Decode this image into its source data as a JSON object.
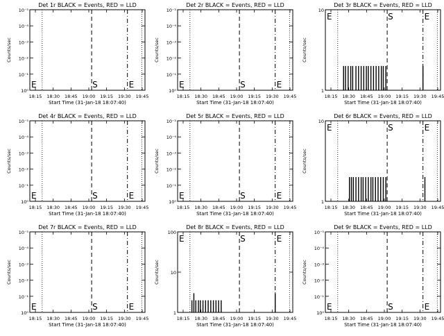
{
  "chart_data": [
    {
      "type": "line",
      "title": "Det 1r BLACK = Events, RED = LLD",
      "ylabel": "Counts/sec",
      "xlabel": "Start Time (31-Jan-18 18:07:40)",
      "yscale": "log",
      "ylim": [
        0.1,
        10000
      ],
      "yticks": [
        "10⁰",
        "10⁻¹",
        "10⁻²",
        "10⁻³",
        "10⁻⁴",
        "10⁻⁵"
      ],
      "xticks": [
        "18:15",
        "18:30",
        "18:45",
        "19:00",
        "19:15",
        "19:30",
        "19:45"
      ],
      "markers": [
        "E",
        "S",
        "E"
      ],
      "series": []
    },
    {
      "type": "line",
      "title": "Det 2r BLACK = Events, RED = LLD",
      "ylabel": "Counts/sec",
      "xlabel": "Start Time (31-Jan-18 18:07:40)",
      "yscale": "log",
      "ylim": [
        0.1,
        10000
      ],
      "yticks": [
        "10⁰",
        "10⁻¹",
        "10⁻²",
        "10⁻³",
        "10⁻⁴",
        "10⁻⁵"
      ],
      "xticks": [
        "18:15",
        "18:30",
        "18:45",
        "19:00",
        "19:15",
        "19:30",
        "19:45"
      ],
      "markers": [
        "E",
        "S",
        "E"
      ],
      "series": []
    },
    {
      "type": "line",
      "title": "Det 3r BLACK = Events, RED = LLD",
      "ylabel": "Counts/sec",
      "xlabel": "Start Time (31-Jan-18 18:07:40)",
      "yscale": "log",
      "ylim": [
        1,
        10
      ],
      "yticks": [
        "1",
        "10"
      ],
      "xticks": [
        "18:15",
        "18:30",
        "18:45",
        "19:00",
        "19:15",
        "19:30",
        "19:45"
      ],
      "markers": [
        "E",
        "S",
        "E"
      ],
      "series": [
        {
          "values": [
            [
              18.33,
              2
            ],
            [
              18.36,
              2
            ],
            [
              18.4,
              2
            ],
            [
              18.44,
              2
            ],
            [
              18.47,
              2
            ],
            [
              18.52,
              2
            ],
            [
              18.56,
              2
            ],
            [
              18.6,
              2
            ],
            [
              18.64,
              2
            ],
            [
              18.68,
              2
            ],
            [
              18.71,
              2
            ],
            [
              18.75,
              2
            ],
            [
              18.79,
              2
            ],
            [
              18.83,
              2
            ],
            [
              18.87,
              2
            ],
            [
              18.91,
              2
            ],
            [
              18.94,
              2
            ],
            [
              18.98,
              2
            ],
            [
              19.55,
              2
            ]
          ]
        }
      ]
    },
    {
      "type": "line",
      "title": "Det 4r BLACK = Events, RED = LLD",
      "ylabel": "Counts/sec",
      "xlabel": "Start Time (31-Jan-18 18:07:40)",
      "yscale": "log",
      "ylim": [
        0.1,
        10000
      ],
      "yticks": [
        "10⁰",
        "10⁻¹",
        "10⁻²",
        "10⁻³",
        "10⁻⁴",
        "10⁻⁵"
      ],
      "xticks": [
        "18:15",
        "18:30",
        "18:45",
        "19:00",
        "19:15",
        "19:30",
        "19:45"
      ],
      "markers": [
        "E",
        "S",
        "E"
      ],
      "series": []
    },
    {
      "type": "line",
      "title": "Det 5r BLACK = Events, RED = LLD",
      "ylabel": "Counts/sec",
      "xlabel": "Start Time (31-Jan-18 18:07:40)",
      "yscale": "log",
      "ylim": [
        0.1,
        10000
      ],
      "yticks": [
        "10⁰",
        "10⁻¹",
        "10⁻²",
        "10⁻³",
        "10⁻⁴",
        "10⁻⁵"
      ],
      "xticks": [
        "18:15",
        "18:30",
        "18:45",
        "19:00",
        "19:15",
        "19:30",
        "19:45"
      ],
      "markers": [
        "E",
        "S",
        "E"
      ],
      "series": []
    },
    {
      "type": "line",
      "title": "Det 6r BLACK = Events, RED = LLD",
      "ylabel": "Counts/sec",
      "xlabel": "Start Time (31-Jan-18 18:07:40)",
      "yscale": "log",
      "ylim": [
        1,
        10
      ],
      "yticks": [
        "1",
        "10"
      ],
      "xticks": [
        "18:15",
        "18:30",
        "18:45",
        "19:00",
        "19:15",
        "19:30",
        "19:45"
      ],
      "markers": [
        "E",
        "S",
        "E"
      ],
      "series": [
        {
          "values": [
            [
              18.42,
              2
            ],
            [
              18.45,
              2
            ],
            [
              18.48,
              2
            ],
            [
              18.52,
              2
            ],
            [
              18.56,
              2
            ],
            [
              18.6,
              2
            ],
            [
              18.63,
              2
            ],
            [
              18.67,
              2
            ],
            [
              18.71,
              2
            ],
            [
              18.75,
              2
            ],
            [
              18.78,
              2
            ],
            [
              18.82,
              2
            ],
            [
              18.86,
              2
            ],
            [
              18.9,
              2
            ],
            [
              18.94,
              2
            ],
            [
              18.98,
              2
            ],
            [
              19.58,
              2
            ]
          ]
        }
      ]
    },
    {
      "type": "line",
      "title": "Det 7r BLACK = Events, RED = LLD",
      "ylabel": "Counts/sec",
      "xlabel": "Start Time (31-Jan-18 18:07:40)",
      "yscale": "log",
      "ylim": [
        0.1,
        10000
      ],
      "yticks": [
        "10⁰",
        "10⁻¹",
        "10⁻²",
        "10⁻³",
        "10⁻⁴",
        "10⁻⁵"
      ],
      "xticks": [
        "18:15",
        "18:30",
        "18:45",
        "19:00",
        "19:15",
        "19:30",
        "19:45"
      ],
      "markers": [
        "E",
        "S",
        "E"
      ],
      "series": []
    },
    {
      "type": "line",
      "title": "Det 8r BLACK = Events, RED = LLD",
      "ylabel": "Counts/sec",
      "xlabel": "Start Time (31-Jan-18 18:07:40)",
      "yscale": "log",
      "ylim": [
        1,
        100
      ],
      "yticks": [
        "1",
        "10",
        "100"
      ],
      "xticks": [
        "18:15",
        "18:30",
        "18:45",
        "19:00",
        "19:15",
        "19:30",
        "19:45"
      ],
      "markers": [
        "E",
        "S",
        "E"
      ],
      "series": [
        {
          "values": [
            [
              18.27,
              2
            ],
            [
              18.3,
              3
            ],
            [
              18.33,
              2
            ],
            [
              18.37,
              2
            ],
            [
              18.4,
              2
            ],
            [
              18.44,
              2
            ],
            [
              18.48,
              2
            ],
            [
              18.52,
              2
            ],
            [
              18.56,
              2
            ],
            [
              18.6,
              2
            ],
            [
              18.64,
              2
            ],
            [
              18.68,
              2
            ],
            [
              18.72,
              2
            ],
            [
              19.55,
              3
            ]
          ]
        }
      ]
    },
    {
      "type": "line",
      "title": "Det 9r BLACK = Events, RED = LLD",
      "ylabel": "Counts/sec",
      "xlabel": "Start Time (31-Jan-18 18:07:40)",
      "yscale": "log",
      "ylim": [
        0.1,
        10000
      ],
      "yticks": [
        "10⁰",
        "10⁻¹",
        "10⁻²",
        "10⁻³",
        "10⁻⁴",
        "10⁻⁵"
      ],
      "xticks": [
        "18:15",
        "18:30",
        "18:45",
        "19:00",
        "19:15",
        "19:30",
        "19:45"
      ],
      "markers": [
        "E",
        "S",
        "E"
      ],
      "series": []
    }
  ]
}
